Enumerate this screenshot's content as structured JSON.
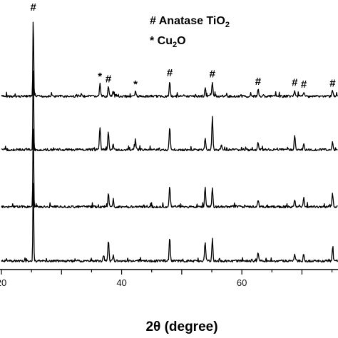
{
  "chart_data": {
    "type": "line",
    "xlabel": "2θ (degree)",
    "x_range": [
      20,
      76
    ],
    "x_ticks": [
      {
        "value": 20,
        "label": "20"
      },
      {
        "value": 40,
        "label": "40"
      },
      {
        "value": 60,
        "label": "60"
      }
    ],
    "legend": [
      {
        "symbol": "#",
        "label": "Anatase TiO",
        "subscript": "2"
      },
      {
        "symbol": "*",
        "label": "Cu",
        "subscript": "2",
        "suffix": "O"
      }
    ],
    "series": [
      {
        "peaks": [
          {
            "x": 25.3,
            "h": 0.94
          },
          {
            "x": 36.4,
            "h": 0.14
          },
          {
            "x": 37.8,
            "h": 0.11
          },
          {
            "x": 38.6,
            "h": 0.06
          },
          {
            "x": 42.3,
            "h": 0.05
          },
          {
            "x": 48.0,
            "h": 0.18
          },
          {
            "x": 53.9,
            "h": 0.1
          },
          {
            "x": 55.1,
            "h": 0.17
          },
          {
            "x": 62.7,
            "h": 0.08
          },
          {
            "x": 68.8,
            "h": 0.07
          },
          {
            "x": 70.3,
            "h": 0.05
          },
          {
            "x": 75.1,
            "h": 0.06
          }
        ],
        "markers": [
          {
            "x": 25.3,
            "symbol": "#"
          },
          {
            "x": 36.4,
            "symbol": "*"
          },
          {
            "x": 37.8,
            "symbol": "#"
          },
          {
            "x": 42.3,
            "symbol": "*"
          },
          {
            "x": 48.0,
            "symbol": "#"
          },
          {
            "x": 55.1,
            "symbol": "#"
          },
          {
            "x": 62.7,
            "symbol": "#"
          },
          {
            "x": 68.8,
            "symbol": "#"
          },
          {
            "x": 70.3,
            "symbol": "#"
          },
          {
            "x": 75.1,
            "symbol": "#"
          }
        ]
      },
      {
        "peaks": [
          {
            "x": 25.3,
            "h": 1.0
          },
          {
            "x": 36.4,
            "h": 0.25
          },
          {
            "x": 37.8,
            "h": 0.2
          },
          {
            "x": 38.6,
            "h": 0.06
          },
          {
            "x": 42.3,
            "h": 0.12
          },
          {
            "x": 48.0,
            "h": 0.27
          },
          {
            "x": 53.9,
            "h": 0.13
          },
          {
            "x": 55.1,
            "h": 0.37
          },
          {
            "x": 56.6,
            "h": 0.06
          },
          {
            "x": 62.7,
            "h": 0.09
          },
          {
            "x": 68.8,
            "h": 0.17
          },
          {
            "x": 70.3,
            "h": 0.07
          },
          {
            "x": 75.1,
            "h": 0.09
          }
        ],
        "markers": []
      },
      {
        "peaks": [
          {
            "x": 25.3,
            "h": 1.0
          },
          {
            "x": 37.8,
            "h": 0.16
          },
          {
            "x": 38.6,
            "h": 0.06
          },
          {
            "x": 48.0,
            "h": 0.23
          },
          {
            "x": 53.9,
            "h": 0.22
          },
          {
            "x": 55.1,
            "h": 0.22
          },
          {
            "x": 62.7,
            "h": 0.08
          },
          {
            "x": 68.8,
            "h": 0.07
          },
          {
            "x": 70.3,
            "h": 0.11
          },
          {
            "x": 75.1,
            "h": 0.15
          }
        ],
        "markers": []
      },
      {
        "peaks": [
          {
            "x": 25.3,
            "h": 1.0
          },
          {
            "x": 37.0,
            "h": 0.07
          },
          {
            "x": 37.8,
            "h": 0.23
          },
          {
            "x": 38.6,
            "h": 0.06
          },
          {
            "x": 48.0,
            "h": 0.28
          },
          {
            "x": 53.9,
            "h": 0.22
          },
          {
            "x": 55.1,
            "h": 0.25
          },
          {
            "x": 62.7,
            "h": 0.1
          },
          {
            "x": 68.8,
            "h": 0.07
          },
          {
            "x": 70.3,
            "h": 0.08
          },
          {
            "x": 75.1,
            "h": 0.15
          }
        ],
        "markers": []
      }
    ]
  }
}
